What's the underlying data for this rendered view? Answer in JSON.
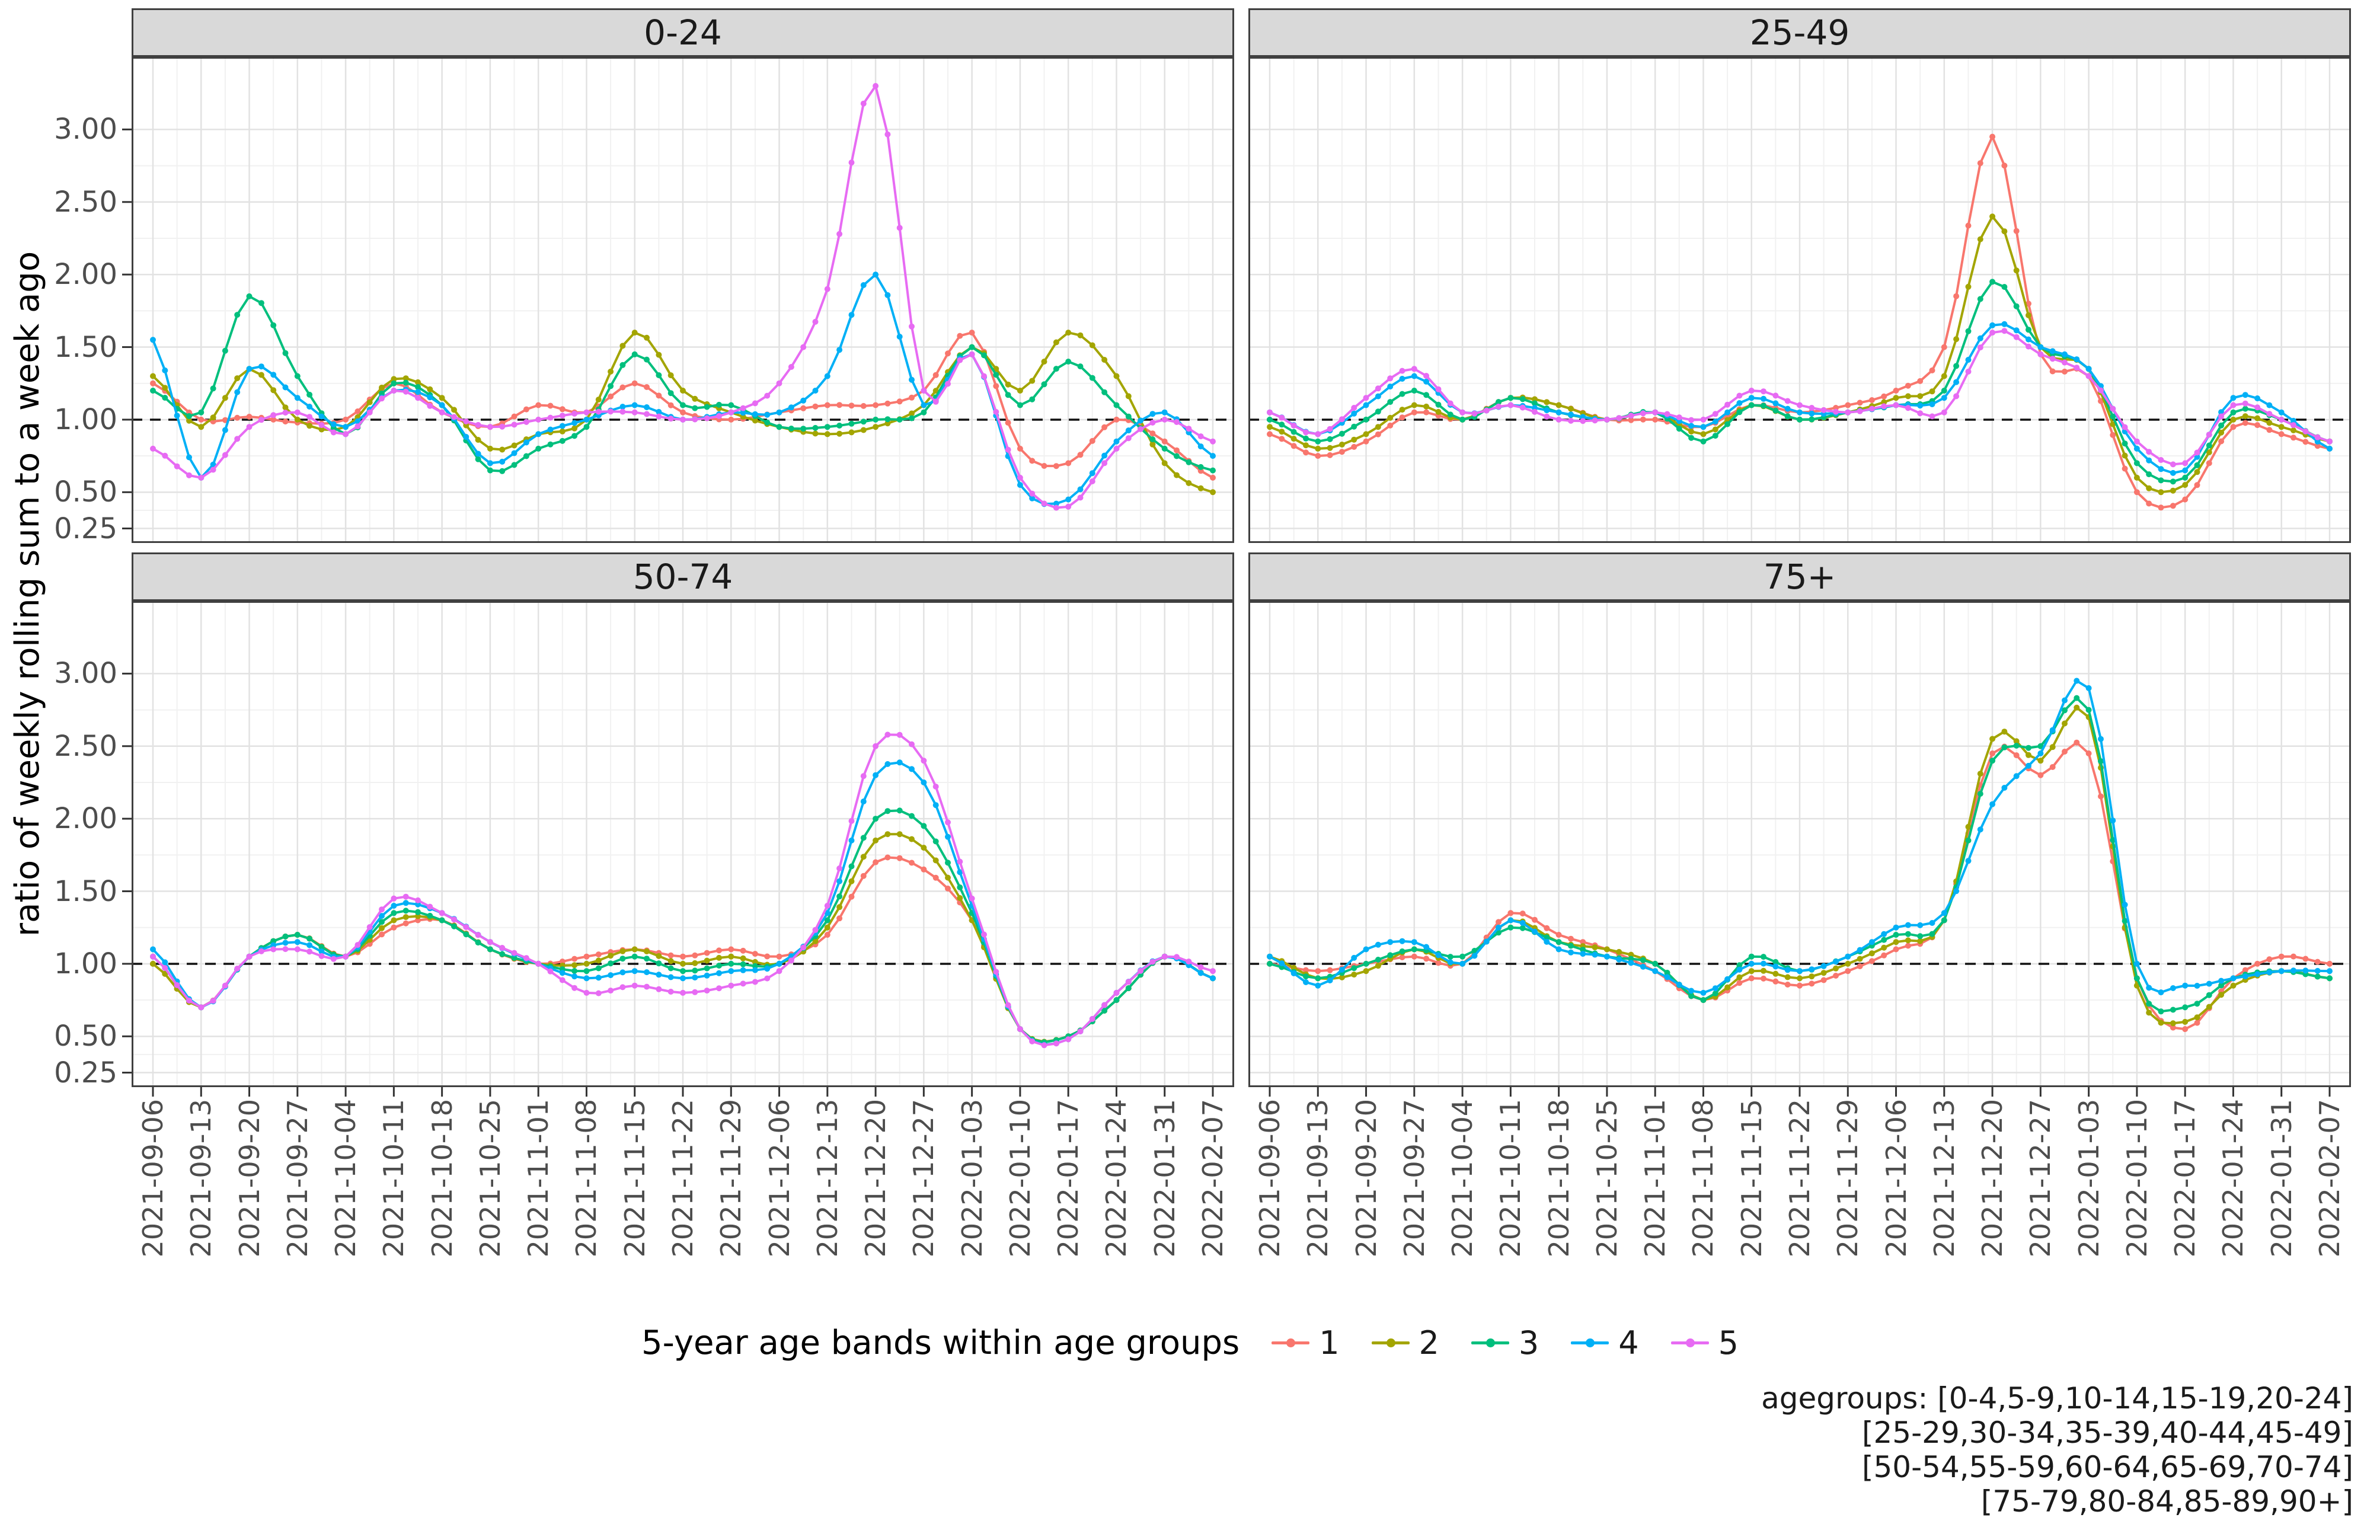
{
  "axis": {
    "y_title": "ratio of weekly rolling sum to a week ago",
    "y_ticks": [
      "3.00",
      "2.50",
      "2.00",
      "1.50",
      "1.00",
      "0.50",
      "0.25"
    ],
    "x_ticks": [
      "2021-09-06",
      "2021-09-13",
      "2021-09-20",
      "2021-09-27",
      "2021-10-04",
      "2021-10-11",
      "2021-10-18",
      "2021-10-25",
      "2021-11-01",
      "2021-11-08",
      "2021-11-15",
      "2021-11-22",
      "2021-11-29",
      "2021-12-06",
      "2021-12-13",
      "2021-12-20",
      "2021-12-27",
      "2022-01-03",
      "2022-01-10",
      "2022-01-17",
      "2022-01-24",
      "2022-01-31",
      "2022-02-07"
    ]
  },
  "legend": {
    "title": "5-year age bands within age groups",
    "items": [
      {
        "label": "1",
        "color": "#F8766D"
      },
      {
        "label": "2",
        "color": "#A3A500"
      },
      {
        "label": "3",
        "color": "#00BF7D"
      },
      {
        "label": "4",
        "color": "#00B0F6"
      },
      {
        "label": "5",
        "color": "#E76BF3"
      }
    ]
  },
  "caption": {
    "lines": [
      "agegroups: [0-4,5-9,10-14,15-19,20-24]",
      "[25-29,30-34,35-39,40-44,45-49]",
      "[50-54,55-59,60-64,65-69,70-74]",
      "[75-79,80-84,85-89,90+]"
    ]
  },
  "chart_data": {
    "type": "line",
    "x": [
      "2021-09-06",
      "2021-09-13",
      "2021-09-20",
      "2021-09-27",
      "2021-10-04",
      "2021-10-11",
      "2021-10-18",
      "2021-10-25",
      "2021-11-01",
      "2021-11-08",
      "2021-11-15",
      "2021-11-22",
      "2021-11-29",
      "2021-12-06",
      "2021-12-13",
      "2021-12-20",
      "2021-12-27",
      "2022-01-03",
      "2022-01-10",
      "2022-01-17",
      "2022-01-24",
      "2022-01-31",
      "2022-02-07"
    ],
    "ylim": [
      0.15,
      3.5
    ],
    "y_scale": "linear",
    "ref_line": 1.0,
    "grid": true,
    "legend_position": "bottom",
    "panels": [
      {
        "title": "0-24",
        "series": [
          {
            "name": "1",
            "color": "#F8766D",
            "values": [
              1.25,
              1.0,
              1.02,
              0.98,
              1.0,
              1.25,
              1.05,
              0.95,
              1.1,
              1.05,
              1.25,
              1.05,
              1.0,
              1.05,
              1.1,
              1.1,
              1.2,
              1.6,
              0.8,
              0.7,
              1.0,
              0.85,
              0.6
            ]
          },
          {
            "name": "2",
            "color": "#A3A500",
            "values": [
              1.3,
              0.95,
              1.35,
              1.0,
              0.95,
              1.28,
              1.15,
              0.8,
              0.9,
              1.0,
              1.6,
              1.2,
              1.05,
              0.95,
              0.9,
              0.95,
              1.1,
              1.5,
              1.2,
              1.6,
              1.3,
              0.7,
              0.5
            ]
          },
          {
            "name": "3",
            "color": "#00BF7D",
            "values": [
              1.2,
              1.05,
              1.85,
              1.3,
              0.9,
              1.25,
              1.1,
              0.65,
              0.8,
              0.95,
              1.45,
              1.1,
              1.1,
              0.95,
              0.95,
              1.0,
              1.05,
              1.5,
              1.1,
              1.4,
              1.1,
              0.8,
              0.65
            ]
          },
          {
            "name": "4",
            "color": "#00B0F6",
            "values": [
              1.55,
              0.6,
              1.35,
              1.15,
              0.95,
              1.2,
              1.1,
              0.7,
              0.9,
              1.0,
              1.1,
              1.0,
              1.05,
              1.05,
              1.3,
              2.0,
              1.1,
              1.45,
              0.55,
              0.45,
              0.85,
              1.05,
              0.75
            ]
          },
          {
            "name": "5",
            "color": "#E76BF3",
            "values": [
              0.8,
              0.6,
              0.95,
              1.05,
              0.9,
              1.2,
              1.05,
              0.95,
              1.0,
              1.05,
              1.05,
              1.0,
              1.05,
              1.25,
              1.9,
              3.3,
              1.2,
              1.45,
              0.6,
              0.4,
              0.8,
              1.0,
              0.85
            ]
          }
        ]
      },
      {
        "title": "25-49",
        "series": [
          {
            "name": "1",
            "color": "#F8766D",
            "values": [
              0.9,
              0.75,
              0.85,
              1.05,
              1.0,
              1.15,
              1.1,
              1.0,
              1.0,
              0.95,
              1.1,
              1.05,
              1.1,
              1.2,
              1.5,
              2.95,
              1.45,
              1.3,
              0.5,
              0.45,
              0.95,
              0.9,
              0.8
            ]
          },
          {
            "name": "2",
            "color": "#A3A500",
            "values": [
              0.95,
              0.8,
              0.9,
              1.1,
              1.0,
              1.15,
              1.1,
              1.0,
              1.05,
              0.9,
              1.1,
              1.0,
              1.05,
              1.15,
              1.3,
              2.4,
              1.5,
              1.35,
              0.6,
              0.55,
              1.0,
              0.95,
              0.85
            ]
          },
          {
            "name": "3",
            "color": "#00BF7D",
            "values": [
              1.0,
              0.85,
              1.0,
              1.2,
              1.0,
              1.15,
              1.05,
              1.0,
              1.05,
              0.85,
              1.1,
              1.0,
              1.05,
              1.1,
              1.2,
              1.95,
              1.5,
              1.35,
              0.7,
              0.6,
              1.05,
              1.0,
              0.85
            ]
          },
          {
            "name": "4",
            "color": "#00B0F6",
            "values": [
              1.05,
              0.9,
              1.1,
              1.3,
              1.05,
              1.1,
              1.05,
              1.0,
              1.05,
              0.95,
              1.15,
              1.05,
              1.05,
              1.1,
              1.15,
              1.65,
              1.5,
              1.35,
              0.8,
              0.65,
              1.15,
              1.05,
              0.8
            ]
          },
          {
            "name": "5",
            "color": "#E76BF3",
            "values": [
              1.05,
              0.9,
              1.15,
              1.35,
              1.05,
              1.1,
              1.0,
              1.0,
              1.05,
              1.0,
              1.2,
              1.1,
              1.05,
              1.1,
              1.05,
              1.6,
              1.45,
              1.3,
              0.85,
              0.7,
              1.1,
              1.0,
              0.85
            ]
          }
        ]
      },
      {
        "title": "50-74",
        "series": [
          {
            "name": "1",
            "color": "#F8766D",
            "values": [
              1.0,
              0.7,
              1.05,
              1.2,
              1.05,
              1.25,
              1.3,
              1.1,
              1.0,
              1.05,
              1.1,
              1.05,
              1.1,
              1.05,
              1.2,
              1.7,
              1.65,
              1.3,
              0.55,
              0.5,
              0.75,
              1.05,
              0.9
            ]
          },
          {
            "name": "2",
            "color": "#A3A500",
            "values": [
              1.0,
              0.7,
              1.05,
              1.2,
              1.05,
              1.3,
              1.3,
              1.1,
              1.0,
              1.0,
              1.1,
              1.0,
              1.05,
              1.0,
              1.25,
              1.85,
              1.8,
              1.3,
              0.55,
              0.5,
              0.75,
              1.05,
              0.9
            ]
          },
          {
            "name": "3",
            "color": "#00BF7D",
            "values": [
              1.05,
              0.7,
              1.05,
              1.2,
              1.05,
              1.35,
              1.3,
              1.1,
              1.0,
              0.95,
              1.05,
              0.95,
              1.0,
              1.0,
              1.3,
              2.0,
              1.95,
              1.35,
              0.55,
              0.5,
              0.75,
              1.05,
              0.9
            ]
          },
          {
            "name": "4",
            "color": "#00B0F6",
            "values": [
              1.1,
              0.7,
              1.05,
              1.15,
              1.05,
              1.4,
              1.35,
              1.15,
              1.0,
              0.9,
              0.95,
              0.9,
              0.95,
              1.0,
              1.35,
              2.3,
              2.25,
              1.4,
              0.55,
              0.48,
              0.8,
              1.05,
              0.9
            ]
          },
          {
            "name": "5",
            "color": "#E76BF3",
            "values": [
              1.05,
              0.7,
              1.05,
              1.1,
              1.05,
              1.45,
              1.35,
              1.15,
              1.0,
              0.8,
              0.85,
              0.8,
              0.85,
              0.95,
              1.4,
              2.5,
              2.4,
              1.45,
              0.55,
              0.48,
              0.8,
              1.05,
              0.95
            ]
          }
        ]
      },
      {
        "title": "75+",
        "series": [
          {
            "name": "1",
            "color": "#F8766D",
            "values": [
              1.0,
              0.95,
              1.0,
              1.05,
              1.0,
              1.35,
              1.2,
              1.1,
              0.95,
              0.75,
              0.9,
              0.85,
              0.95,
              1.1,
              1.3,
              2.45,
              2.3,
              2.45,
              0.9,
              0.55,
              0.9,
              1.05,
              1.0
            ]
          },
          {
            "name": "2",
            "color": "#A3A500",
            "values": [
              1.05,
              0.9,
              0.95,
              1.1,
              1.0,
              1.3,
              1.15,
              1.1,
              1.0,
              0.75,
              0.95,
              0.9,
              1.0,
              1.15,
              1.3,
              2.55,
              2.4,
              2.7,
              0.85,
              0.6,
              0.85,
              0.95,
              0.9
            ]
          },
          {
            "name": "3",
            "color": "#00BF7D",
            "values": [
              1.0,
              0.9,
              1.0,
              1.1,
              1.05,
              1.25,
              1.15,
              1.05,
              1.0,
              0.75,
              1.05,
              0.95,
              1.05,
              1.2,
              1.3,
              2.4,
              2.5,
              2.75,
              0.9,
              0.7,
              0.9,
              0.95,
              0.9
            ]
          },
          {
            "name": "4",
            "color": "#00B0F6",
            "values": [
              1.05,
              0.85,
              1.1,
              1.15,
              1.0,
              1.3,
              1.1,
              1.05,
              0.95,
              0.8,
              1.0,
              0.95,
              1.05,
              1.25,
              1.35,
              2.1,
              2.45,
              2.9,
              1.0,
              0.85,
              0.9,
              0.95,
              0.95
            ]
          }
        ]
      }
    ]
  }
}
